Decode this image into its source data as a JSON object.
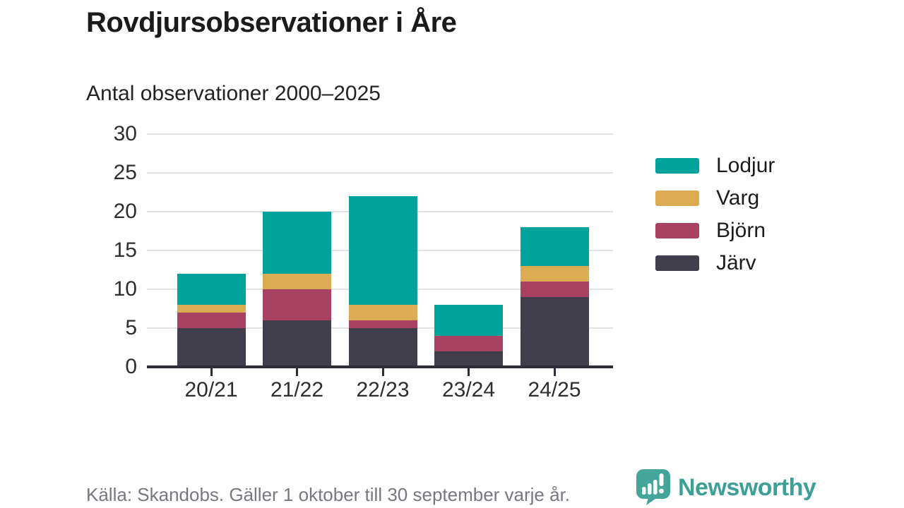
{
  "header": {
    "title": "Rovdjursobservationer i Åre",
    "subtitle": "Antal observationer 2000–2025"
  },
  "chart_data": {
    "type": "bar",
    "stacked": true,
    "title": "Rovdjursobservationer i Åre",
    "subtitle": "Antal observationer 2000–2025",
    "categories": [
      "20/21",
      "21/22",
      "22/23",
      "23/24",
      "24/25"
    ],
    "series": [
      {
        "name": "Lodjur",
        "color": "#00a39a",
        "values": [
          4,
          8,
          14,
          4,
          5
        ]
      },
      {
        "name": "Varg",
        "color": "#dcac52",
        "values": [
          1,
          2,
          2,
          0,
          2
        ]
      },
      {
        "name": "Björn",
        "color": "#a84162",
        "values": [
          2,
          4,
          1,
          2,
          2
        ]
      },
      {
        "name": "Järv",
        "color": "#413e4c",
        "values": [
          5,
          6,
          5,
          2,
          9
        ]
      }
    ],
    "totals": [
      12,
      20,
      22,
      8,
      18
    ],
    "xlabel": "",
    "ylabel": "",
    "ylim": [
      0,
      30
    ],
    "yticks": [
      0,
      5,
      10,
      15,
      20,
      25,
      30
    ],
    "grid": true,
    "legend_position": "right",
    "stack_order_bottom_to_top": [
      "Järv",
      "Björn",
      "Varg",
      "Lodjur"
    ]
  },
  "footer": {
    "source": "Källa: Skandobs. Gäller 1 oktober till 30 september varje år."
  },
  "branding": {
    "name": "Newsworthy",
    "logo_icon": "newsworthy-speech-bubble-chart-icon",
    "color": "#3da096",
    "logo_fill": "#44a59b"
  }
}
